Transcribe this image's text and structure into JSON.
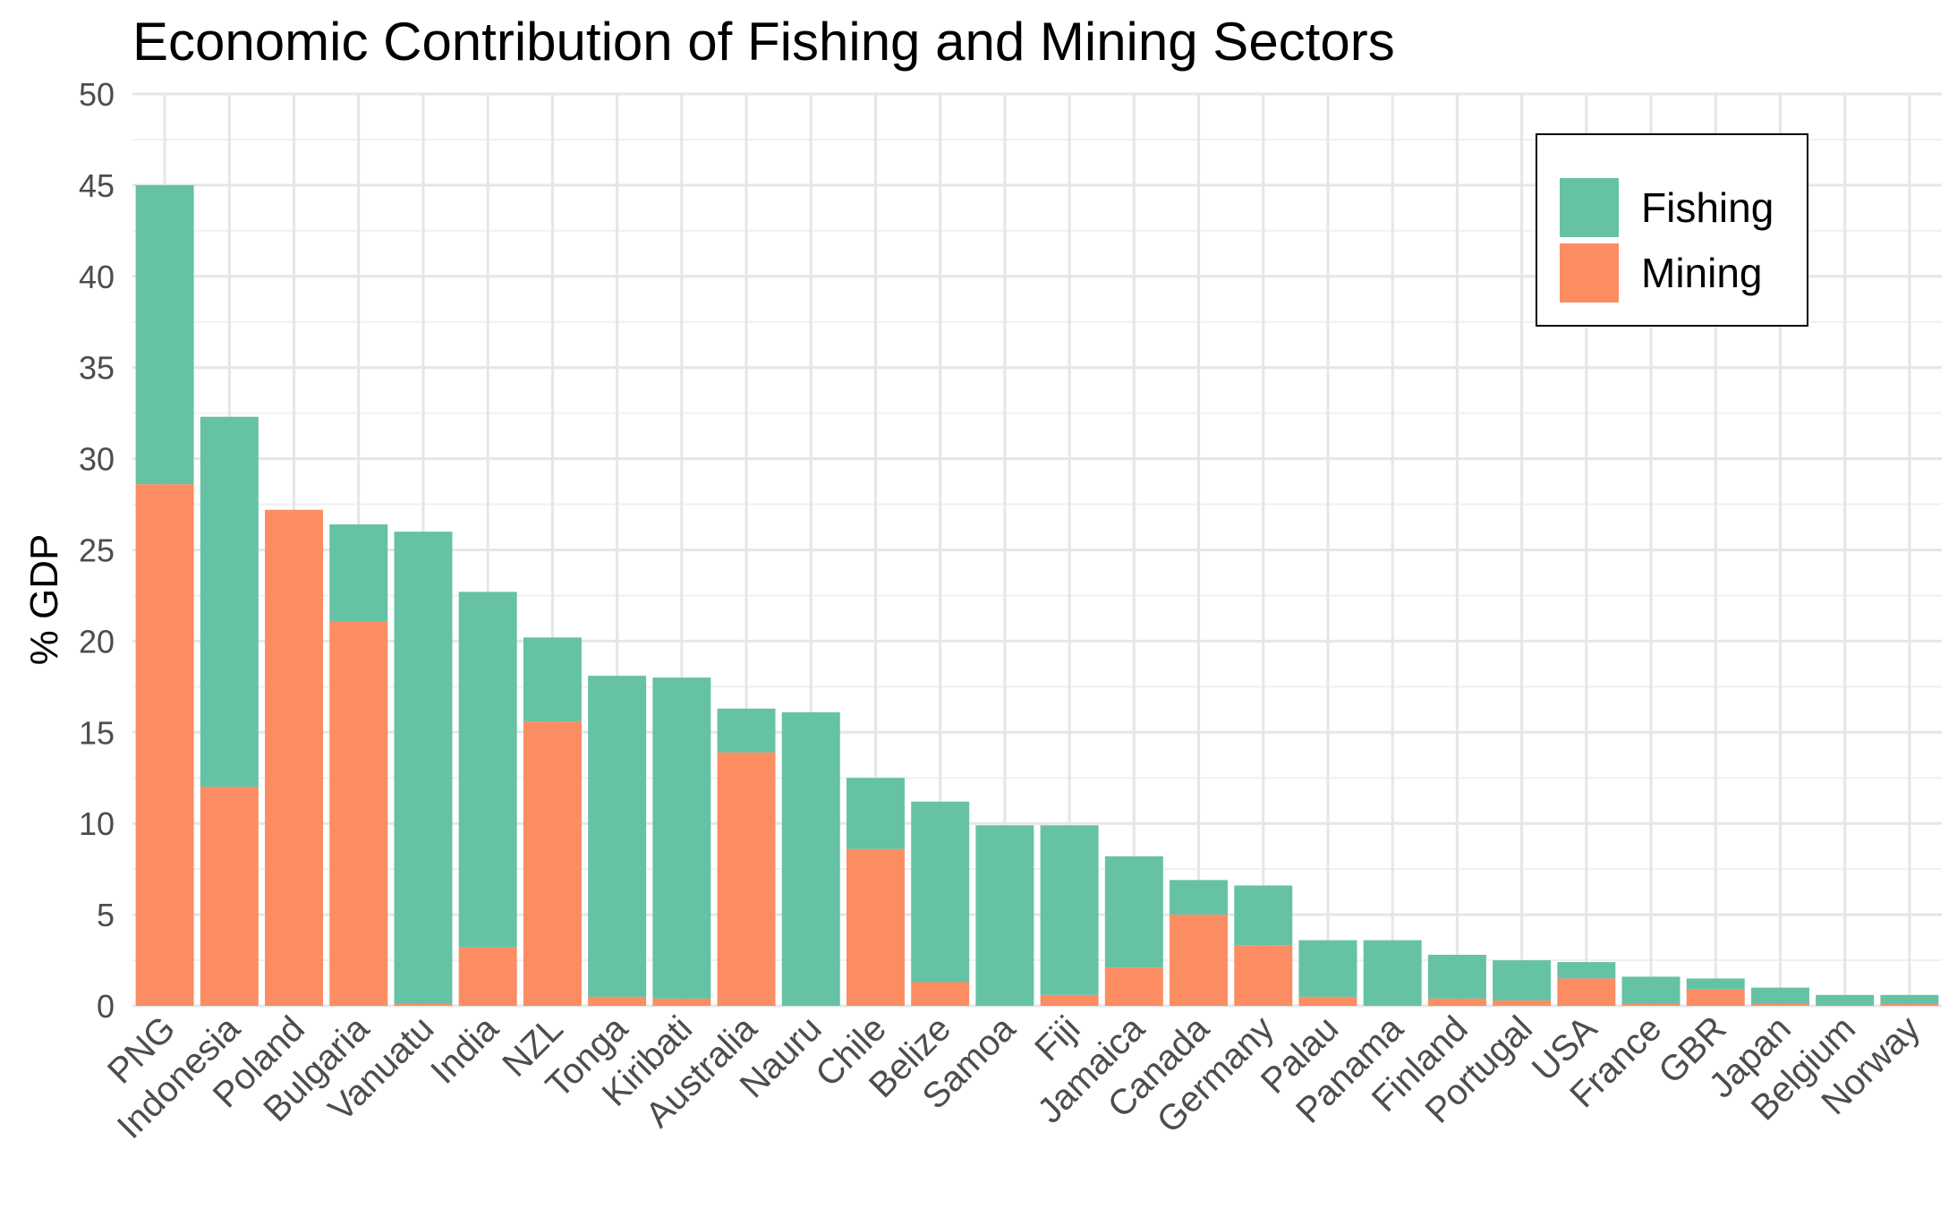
{
  "chart_data": {
    "type": "bar",
    "stacked": true,
    "title": "Economic Contribution of Fishing and Mining Sectors",
    "ylabel": "% GDP",
    "xlabel": "",
    "ylim": [
      0,
      50
    ],
    "yticks": [
      0,
      5,
      10,
      15,
      20,
      25,
      30,
      35,
      40,
      45,
      50
    ],
    "grid": true,
    "legend_position": "top-right",
    "categories": [
      "PNG",
      "Indonesia",
      "Poland",
      "Bulgaria",
      "Vanuatu",
      "India",
      "NZL",
      "Tonga",
      "Kiribati",
      "Australia",
      "Nauru",
      "Chile",
      "Belize",
      "Samoa",
      "Fiji",
      "Jamaica",
      "Canada",
      "Germany",
      "Palau",
      "Panama",
      "Finland",
      "Portugal",
      "USA",
      "France",
      "GBR",
      "Japan",
      "Belgium",
      "Norway"
    ],
    "series": [
      {
        "name": "Mining",
        "color": "#FC8D62",
        "values": [
          28.6,
          12.0,
          27.2,
          21.1,
          0.1,
          3.2,
          15.6,
          0.5,
          0.4,
          13.9,
          0.0,
          8.6,
          1.3,
          0.0,
          0.6,
          2.1,
          5.0,
          3.3,
          0.5,
          0.0,
          0.4,
          0.3,
          1.5,
          0.1,
          0.9,
          0.1,
          0.0,
          0.1
        ]
      },
      {
        "name": "Fishing",
        "color": "#66C2A5",
        "values": [
          16.4,
          20.3,
          0.0,
          5.3,
          25.9,
          19.5,
          4.6,
          17.6,
          17.6,
          2.4,
          16.1,
          3.9,
          9.9,
          9.9,
          9.3,
          6.1,
          1.9,
          3.3,
          3.1,
          3.6,
          2.4,
          2.2,
          0.9,
          1.5,
          0.6,
          0.9,
          0.6,
          0.5
        ]
      }
    ],
    "legend": [
      {
        "label": "Fishing",
        "color": "#66C2A5"
      },
      {
        "label": "Mining",
        "color": "#FC8D62"
      }
    ]
  }
}
